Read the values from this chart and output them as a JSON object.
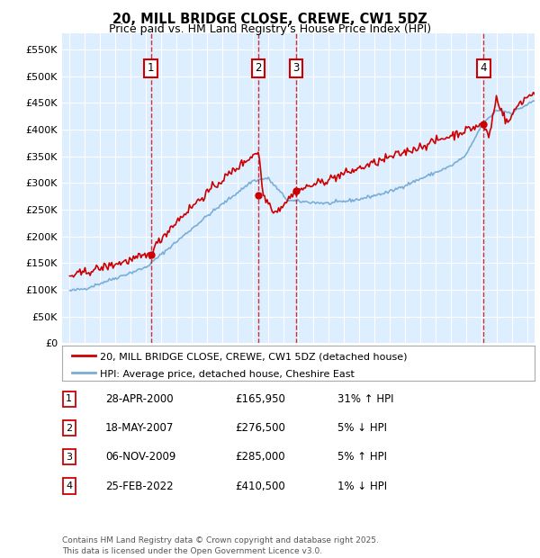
{
  "title": "20, MILL BRIDGE CLOSE, CREWE, CW1 5DZ",
  "subtitle": "Price paid vs. HM Land Registry's House Price Index (HPI)",
  "legend_line1": "20, MILL BRIDGE CLOSE, CREWE, CW1 5DZ (detached house)",
  "legend_line2": "HPI: Average price, detached house, Cheshire East",
  "footer": "Contains HM Land Registry data © Crown copyright and database right 2025.\nThis data is licensed under the Open Government Licence v3.0.",
  "sale_points": [
    {
      "label": "1",
      "date": "28-APR-2000",
      "price": 165950,
      "x": 2000.32
    },
    {
      "label": "2",
      "date": "18-MAY-2007",
      "price": 276500,
      "x": 2007.38
    },
    {
      "label": "3",
      "date": "06-NOV-2009",
      "price": 285000,
      "x": 2009.85
    },
    {
      "label": "4",
      "date": "25-FEB-2022",
      "price": 410500,
      "x": 2022.15
    }
  ],
  "table_rows": [
    {
      "num": "1",
      "date": "28-APR-2000",
      "price": "£165,950",
      "rel": "31% ↑ HPI"
    },
    {
      "num": "2",
      "date": "18-MAY-2007",
      "price": "£276,500",
      "rel": "5% ↓ HPI"
    },
    {
      "num": "3",
      "date": "06-NOV-2009",
      "price": "£285,000",
      "rel": "5% ↑ HPI"
    },
    {
      "num": "4",
      "date": "25-FEB-2022",
      "price": "£410,500",
      "rel": "1% ↓ HPI"
    }
  ],
  "yticks": [
    0,
    50000,
    100000,
    150000,
    200000,
    250000,
    300000,
    350000,
    400000,
    450000,
    500000,
    550000
  ],
  "ylim": [
    0,
    580000
  ],
  "xlim": [
    1994.5,
    2025.5
  ],
  "red_color": "#cc0000",
  "blue_color": "#7aaed6",
  "bg_plot": "#ddeeff",
  "bg_fig": "#ffffff",
  "grid_color": "#ffffff",
  "vline_color": "#cc0000",
  "box_color": "#cc0000"
}
